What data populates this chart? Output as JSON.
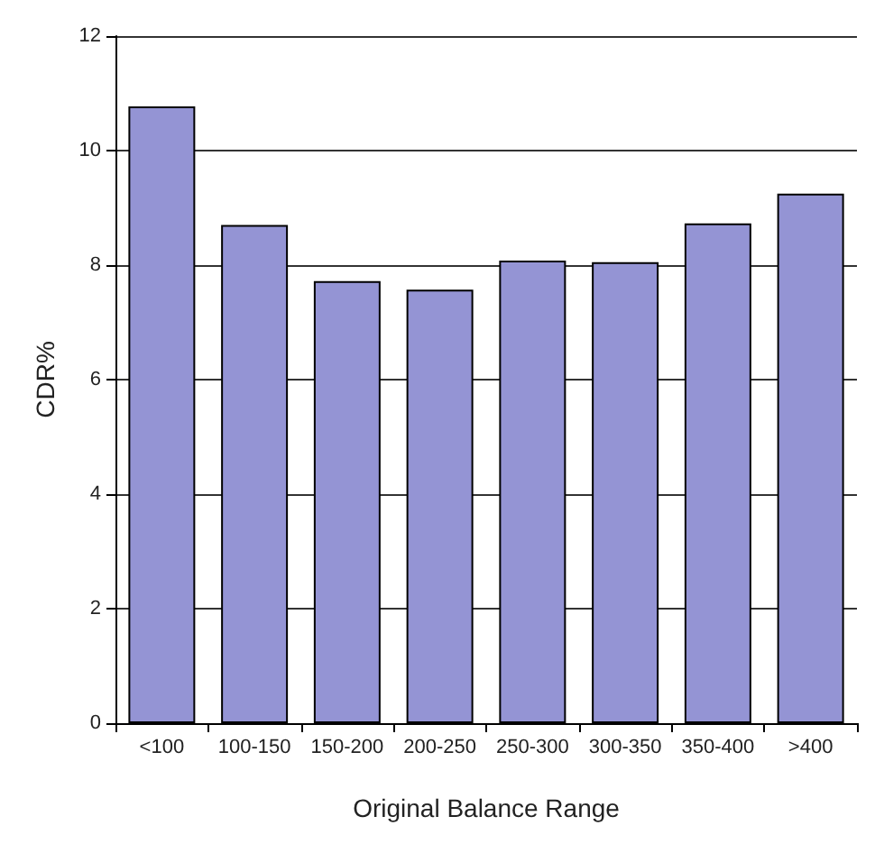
{
  "chart_data": {
    "type": "bar",
    "xlabel": "Original Balance Range",
    "ylabel": "CDR%",
    "categories": [
      "<100",
      "100-150",
      "150-200",
      "200-250",
      "250-300",
      "300-350",
      "350-400",
      ">400"
    ],
    "values": [
      10.77,
      8.7,
      7.72,
      7.57,
      8.08,
      8.05,
      8.73,
      9.25
    ],
    "color": "#9494d4",
    "ylim": [
      0,
      12
    ],
    "yticks": [
      0,
      2,
      4,
      6,
      8,
      10,
      12
    ],
    "grid": "y"
  }
}
